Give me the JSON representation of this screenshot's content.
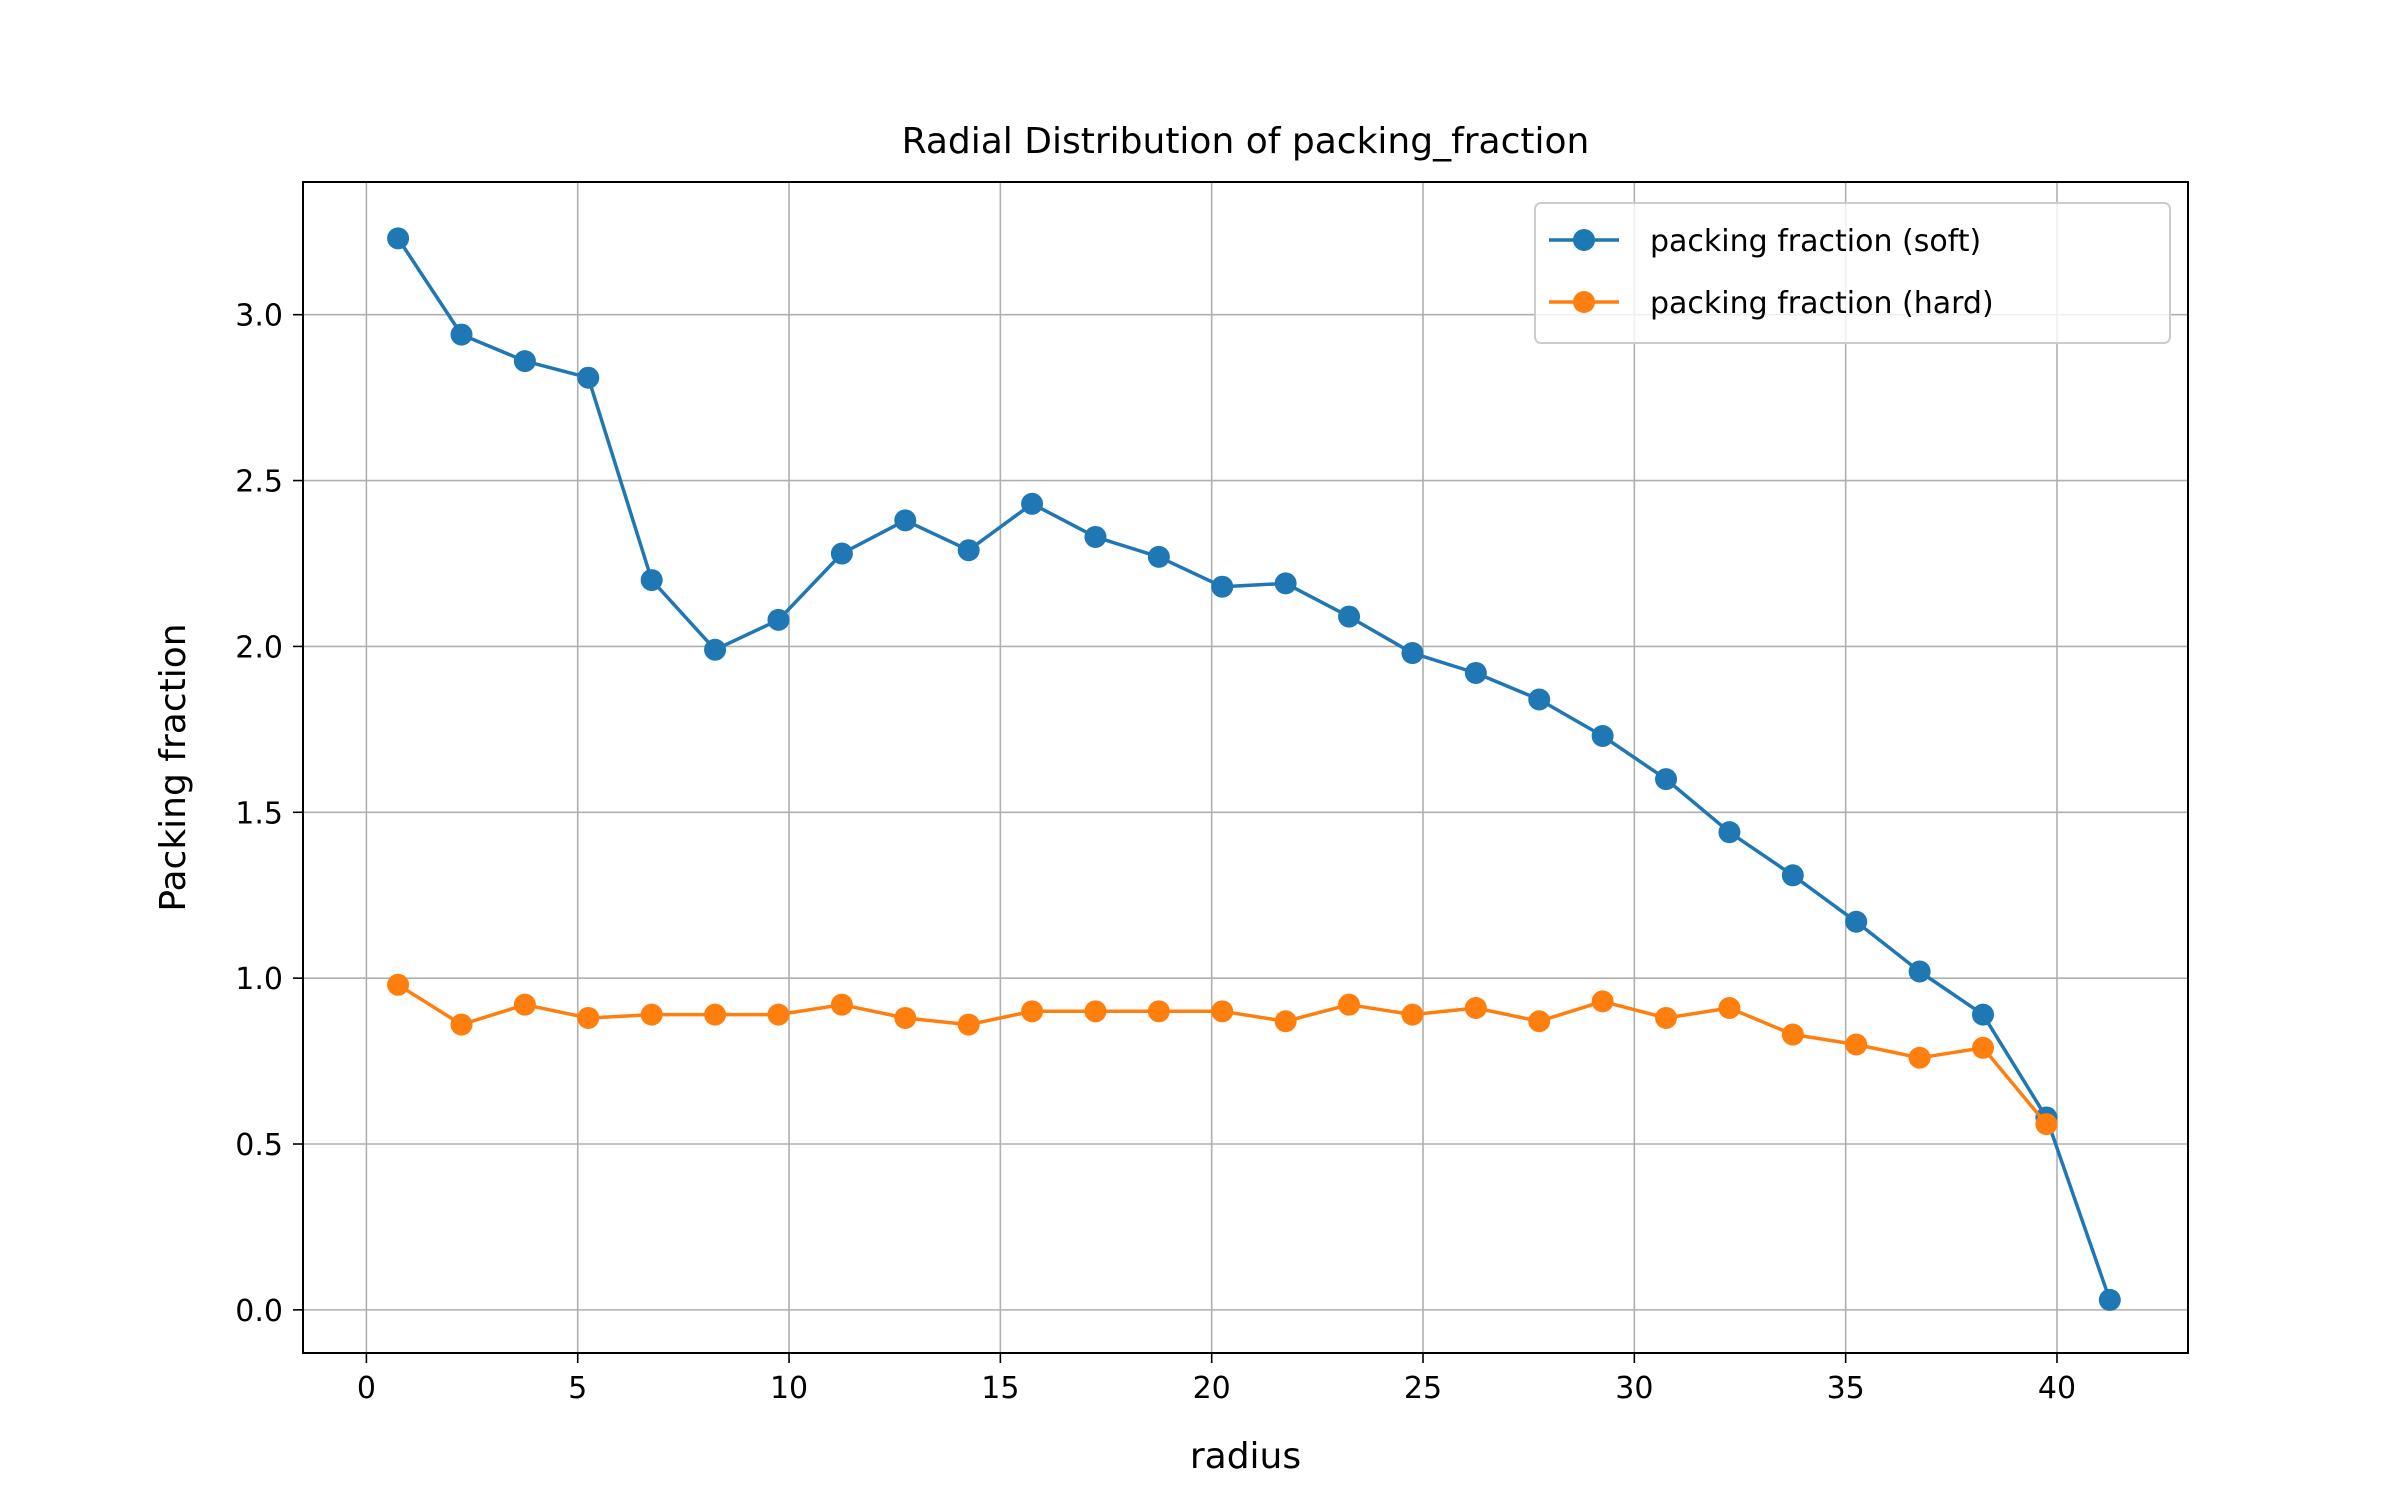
{
  "chart_data": {
    "type": "line",
    "title": "Radial Distribution of packing_fraction",
    "xlabel": "radius",
    "ylabel": "Packing fraction",
    "xlim": [
      -1.5,
      43.1
    ],
    "ylim": [
      -0.13,
      3.4
    ],
    "xticks": [
      0,
      5,
      10,
      15,
      20,
      25,
      30,
      35,
      40
    ],
    "xtick_labels": [
      "0",
      "5",
      "10",
      "15",
      "20",
      "25",
      "30",
      "35",
      "40"
    ],
    "yticks": [
      0.0,
      0.5,
      1.0,
      1.5,
      2.0,
      2.5,
      3.0
    ],
    "ytick_labels": [
      "0.0",
      "0.5",
      "1.0",
      "1.5",
      "2.0",
      "2.5",
      "3.0"
    ],
    "grid": true,
    "legend_position": "top-right",
    "series": [
      {
        "name": "packing fraction (soft)",
        "color": "#1f77b4",
        "marker": "circle",
        "x": [
          0.75,
          2.25,
          3.75,
          5.25,
          6.75,
          8.25,
          9.75,
          11.25,
          12.75,
          14.25,
          15.75,
          17.25,
          18.75,
          20.25,
          21.75,
          23.25,
          24.75,
          26.25,
          27.75,
          29.25,
          30.75,
          32.25,
          33.75,
          35.25,
          36.75,
          38.25,
          39.75,
          41.25
        ],
        "y": [
          3.23,
          2.94,
          2.86,
          2.81,
          2.2,
          1.99,
          2.08,
          2.28,
          2.38,
          2.29,
          2.43,
          2.33,
          2.27,
          2.18,
          2.19,
          2.09,
          1.98,
          1.92,
          1.84,
          1.73,
          1.6,
          1.44,
          1.31,
          1.17,
          1.02,
          0.89,
          0.58,
          0.03
        ]
      },
      {
        "name": "packing fraction (hard)",
        "color": "#ff7f0e",
        "marker": "circle",
        "x": [
          0.75,
          2.25,
          3.75,
          5.25,
          6.75,
          8.25,
          9.75,
          11.25,
          12.75,
          14.25,
          15.75,
          17.25,
          18.75,
          20.25,
          21.75,
          23.25,
          24.75,
          26.25,
          27.75,
          29.25,
          30.75,
          32.25,
          33.75,
          35.25,
          36.75,
          38.25,
          39.75
        ],
        "y": [
          0.98,
          0.86,
          0.92,
          0.88,
          0.89,
          0.89,
          0.89,
          0.92,
          0.88,
          0.86,
          0.9,
          0.9,
          0.9,
          0.9,
          0.87,
          0.92,
          0.89,
          0.91,
          0.87,
          0.93,
          0.88,
          0.91,
          0.83,
          0.8,
          0.76,
          0.79,
          0.56
        ]
      }
    ]
  }
}
